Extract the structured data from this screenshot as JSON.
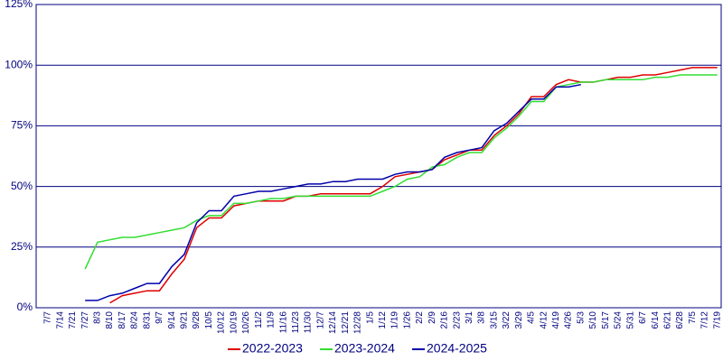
{
  "chart_data": {
    "type": "line",
    "categories": [
      "7/7",
      "7/14",
      "7/21",
      "7/27",
      "8/3",
      "8/10",
      "8/17",
      "8/24",
      "8/31",
      "9/7",
      "9/14",
      "9/21",
      "9/28",
      "10/5",
      "10/12",
      "10/19",
      "10/26",
      "11/2",
      "11/9",
      "11/16",
      "11/23",
      "11/30",
      "12/7",
      "12/14",
      "12/21",
      "12/28",
      "1/5",
      "1/12",
      "1/19",
      "1/26",
      "2/2",
      "2/9",
      "2/16",
      "2/23",
      "3/1",
      "3/8",
      "3/15",
      "3/22",
      "3/29",
      "4/5",
      "4/12",
      "4/19",
      "4/26",
      "5/3",
      "5/10",
      "5/17",
      "5/24",
      "5/31",
      "6/7",
      "6/14",
      "6/21",
      "6/28",
      "7/5",
      "7/12",
      "7/19"
    ],
    "series": [
      {
        "name": "2022-2023",
        "color": "#dd0000",
        "values": [
          null,
          null,
          null,
          null,
          null,
          2,
          5,
          6,
          7,
          7,
          14,
          20,
          33,
          37,
          37,
          42,
          43,
          44,
          44,
          44,
          46,
          46,
          47,
          47,
          47,
          47,
          47,
          50,
          54,
          55,
          56,
          57,
          61,
          63,
          65,
          65,
          71,
          75,
          80,
          87,
          87,
          92,
          94,
          93,
          93,
          94,
          95,
          95,
          96,
          96,
          97,
          98,
          99,
          99,
          99
        ]
      },
      {
        "name": "2023-2024",
        "color": "#33dd33",
        "values": [
          null,
          null,
          null,
          16,
          27,
          28,
          29,
          29,
          30,
          31,
          32,
          33,
          36,
          38,
          38,
          43,
          43,
          44,
          45,
          45,
          46,
          46,
          46,
          46,
          46,
          46,
          46,
          48,
          50,
          53,
          54,
          58,
          59,
          62,
          64,
          64,
          70,
          74,
          79,
          85,
          85,
          91,
          92,
          93,
          93,
          94,
          94,
          94,
          94,
          95,
          95,
          96,
          96,
          96,
          96
        ]
      },
      {
        "name": "2024-2025",
        "color": "#0000aa",
        "values": [
          null,
          null,
          null,
          3,
          3,
          5,
          6,
          8,
          10,
          10,
          17,
          22,
          35,
          40,
          40,
          46,
          47,
          48,
          48,
          49,
          50,
          51,
          51,
          52,
          52,
          53,
          53,
          53,
          55,
          56,
          56,
          57,
          62,
          64,
          65,
          66,
          73,
          76,
          81,
          86,
          86,
          91,
          91,
          92,
          null,
          null,
          null,
          null,
          null,
          null,
          null,
          null,
          null,
          null,
          null
        ]
      }
    ],
    "ylim": [
      0,
      125
    ],
    "yticks": [
      {
        "value": 0,
        "label": "0%"
      },
      {
        "value": 25,
        "label": "25%"
      },
      {
        "value": 50,
        "label": "50%"
      },
      {
        "value": 75,
        "label": "75%"
      },
      {
        "value": 100,
        "label": "100%"
      },
      {
        "value": 125,
        "label": "125%"
      }
    ],
    "grid": true
  }
}
